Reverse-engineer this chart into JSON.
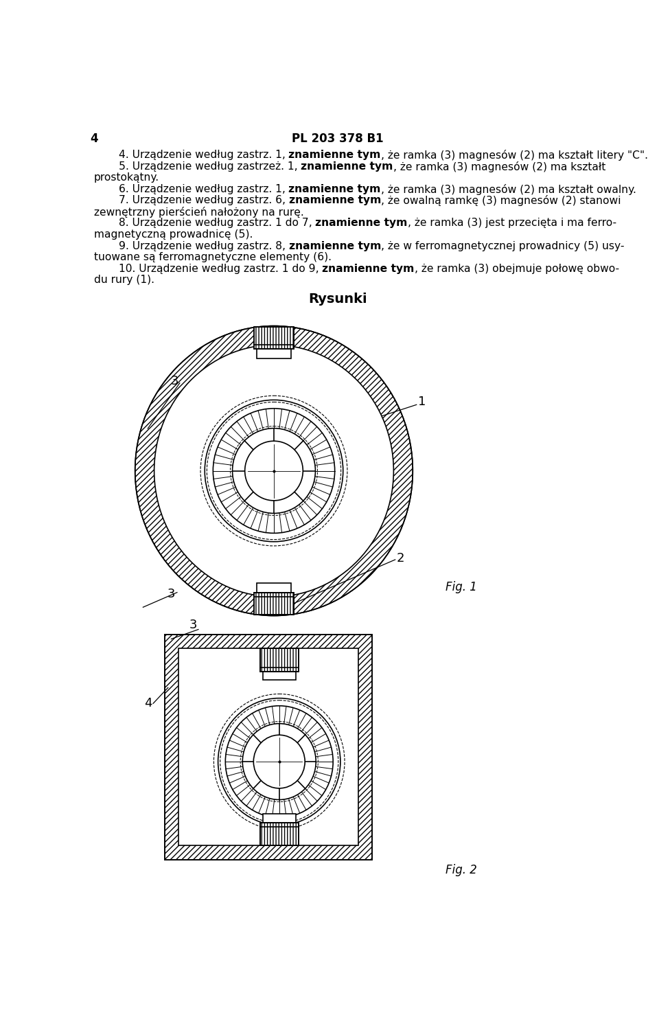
{
  "page_number": "4",
  "header": "PL 203 378 B1",
  "background_color": "#ffffff",
  "text_color": "#000000",
  "section_title": "Rysunki",
  "fig1_label": "Fig. 1",
  "fig2_label": "Fig. 2"
}
